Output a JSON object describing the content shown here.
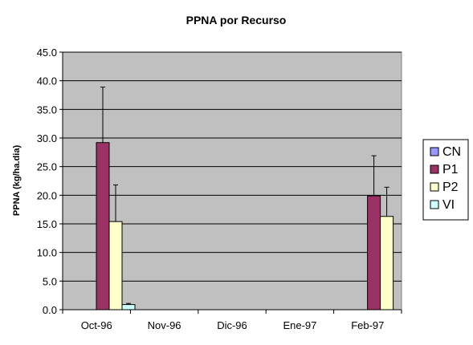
{
  "chart_data": {
    "type": "bar",
    "title": "PPNA por Recurso",
    "xlabel": "",
    "ylabel": "PPNA (kg/ha.dia)",
    "categories": [
      "Oct-96",
      "Nov-96",
      "Dic-96",
      "Ene-97",
      "Feb-97"
    ],
    "ylim": [
      0,
      45
    ],
    "yticks": [
      0,
      5,
      10,
      15,
      20,
      25,
      30,
      35,
      40,
      45
    ],
    "ytick_labels": [
      "0.0",
      "5.0",
      "10.0",
      "15.0",
      "20.0",
      "25.0",
      "30.0",
      "35.0",
      "40.0",
      "45.0"
    ],
    "grid": true,
    "legend_position": "right",
    "plot_background": "#c0c0c0",
    "series": [
      {
        "name": "CN",
        "color": "#9999ff",
        "values": [
          null,
          null,
          null,
          null,
          null
        ],
        "errors": [
          null,
          null,
          null,
          null,
          null
        ]
      },
      {
        "name": "P1",
        "color": "#993366",
        "values": [
          29.2,
          null,
          null,
          null,
          19.9
        ],
        "errors": [
          9.7,
          null,
          null,
          null,
          7.0
        ]
      },
      {
        "name": "P2",
        "color": "#ffffcc",
        "values": [
          15.4,
          null,
          null,
          null,
          16.3
        ],
        "errors": [
          6.4,
          null,
          null,
          null,
          5.1
        ]
      },
      {
        "name": "VI",
        "color": "#ccffff",
        "values": [
          0.9,
          null,
          null,
          null,
          null
        ],
        "errors": [
          0.2,
          null,
          null,
          null,
          null
        ]
      }
    ]
  }
}
